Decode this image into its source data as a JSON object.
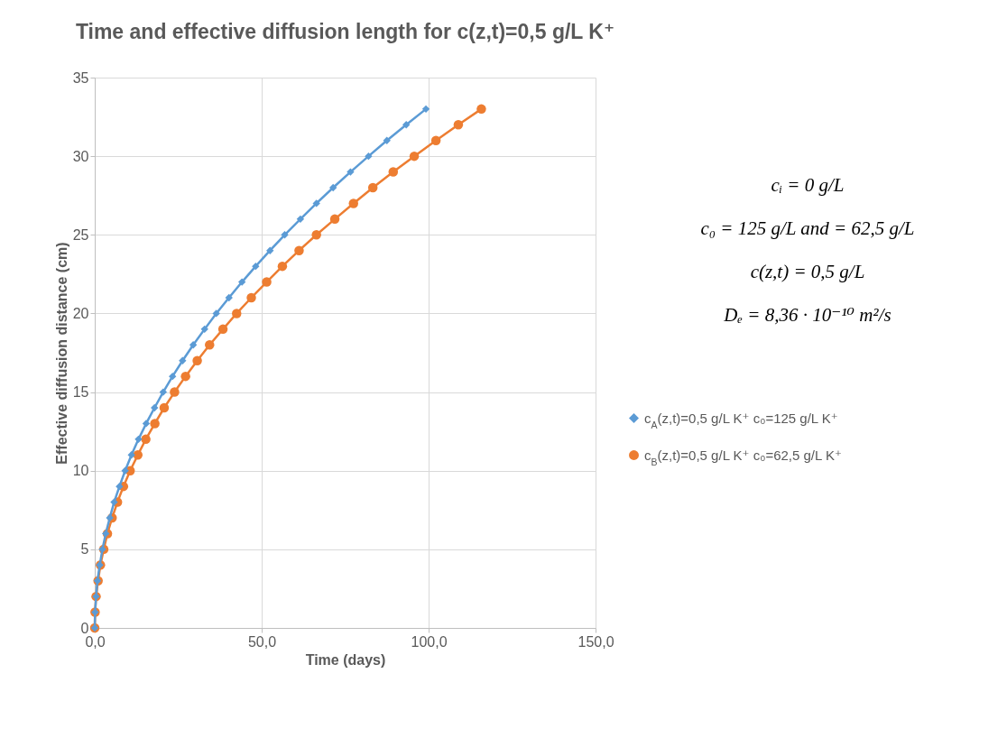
{
  "chart_data": {
    "type": "line",
    "title": "Time and effective diffusion length for c(z,t)=0,5 g/L K⁺",
    "xlabel": "Time (days)",
    "ylabel": "Effective diffusion distance (cm)",
    "xlim": [
      0,
      150
    ],
    "xticks": [
      {
        "value": 0,
        "label": "0,0"
      },
      {
        "value": 50,
        "label": "50,0"
      },
      {
        "value": 100,
        "label": "100,0"
      },
      {
        "value": 150,
        "label": "150,0"
      }
    ],
    "ylim": [
      0,
      35
    ],
    "yticks": [
      0,
      5,
      10,
      15,
      20,
      25,
      30,
      35
    ],
    "grid": true,
    "legend": "right",
    "annotations": [
      "cᵢ = 0 g/L",
      "c₀ = 125 g/L and = 62,5 g/L",
      "c(z,t) = 0,5 g/L",
      "Dₑ = 8,36 · 10⁻¹⁰ m²/s"
    ],
    "series": [
      {
        "name": "c$_{A}$(z,t)=0,5 g/L K⁺ c₀=125 g/L K⁺",
        "color": "#5b9bd5",
        "marker": "diamond",
        "x": [
          0,
          0.1,
          0.4,
          0.8,
          1.5,
          2.3,
          3.3,
          4.5,
          5.8,
          7.4,
          9.1,
          11.0,
          13.1,
          15.4,
          17.9,
          20.5,
          23.3,
          26.3,
          29.5,
          32.9,
          36.4,
          40.2,
          44.1,
          48.2,
          52.5,
          56.9,
          61.6,
          66.4,
          71.4,
          76.6,
          82.0,
          87.5,
          93.3,
          99.2
        ],
        "values": [
          0,
          1,
          2,
          3,
          4,
          5,
          6,
          7,
          8,
          9,
          10,
          11,
          12,
          13,
          14,
          15,
          16,
          17,
          18,
          19,
          20,
          21,
          22,
          23,
          24,
          25,
          26,
          27,
          28,
          29,
          30,
          31,
          32,
          33
        ]
      },
      {
        "name": "c$_{B}$(z,t)=0,5 g/L K⁺ c₀=62,5 g/L K⁺",
        "color": "#ed7d31",
        "marker": "circle",
        "x": [
          0,
          0.1,
          0.4,
          1.0,
          1.7,
          2.7,
          3.8,
          5.2,
          6.8,
          8.6,
          10.6,
          12.9,
          15.3,
          18.0,
          20.8,
          23.9,
          27.2,
          30.7,
          34.4,
          38.4,
          42.5,
          46.9,
          51.5,
          56.2,
          61.2,
          66.4,
          71.9,
          77.5,
          83.3,
          89.4,
          95.7,
          102.2,
          108.9,
          115.8
        ],
        "values": [
          0,
          1,
          2,
          3,
          4,
          5,
          6,
          7,
          8,
          9,
          10,
          11,
          12,
          13,
          14,
          15,
          16,
          17,
          18,
          19,
          20,
          21,
          22,
          23,
          24,
          25,
          26,
          27,
          28,
          29,
          30,
          31,
          32,
          33
        ]
      }
    ]
  }
}
